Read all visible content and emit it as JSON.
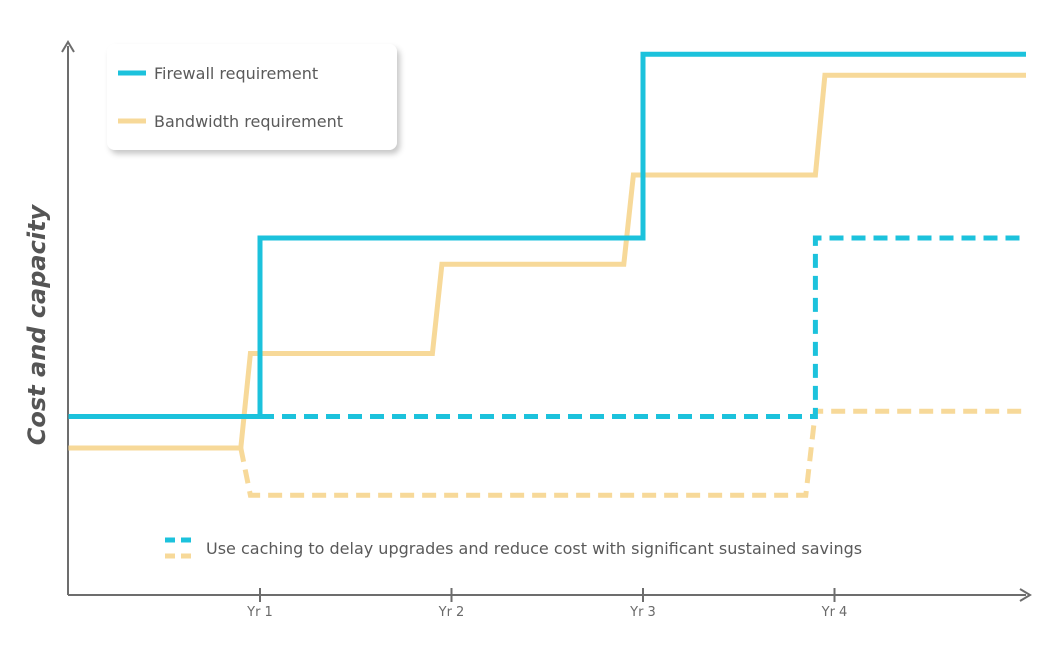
{
  "chart_data": {
    "type": "line",
    "ylabel": "Cost and capacity",
    "xlabel": "",
    "x_ticks": [
      {
        "x": 1,
        "label": "Yr 1"
      },
      {
        "x": 2,
        "label": "Yr 2"
      },
      {
        "x": 3,
        "label": "Yr 3"
      },
      {
        "x": 4,
        "label": "Yr 4"
      }
    ],
    "xlim": [
      0,
      5
    ],
    "ylim": [
      0,
      100
    ],
    "grid": false,
    "legend_placement": "top-left",
    "series": [
      {
        "name": "Firewall requirement",
        "color": "#1cc2dc",
        "style": "solid",
        "points": [
          [
            0,
            34
          ],
          [
            1,
            34
          ],
          [
            1,
            68
          ],
          [
            2,
            68
          ],
          [
            3,
            68
          ],
          [
            3,
            103
          ],
          [
            5,
            103
          ]
        ]
      },
      {
        "name": "Bandwidth requirement",
        "color": "#f7d999",
        "style": "solid",
        "points": [
          [
            0,
            28
          ],
          [
            0.9,
            28
          ],
          [
            0.95,
            46
          ],
          [
            1.9,
            46
          ],
          [
            1.95,
            63
          ],
          [
            2.9,
            63
          ],
          [
            2.95,
            80
          ],
          [
            3.9,
            80
          ],
          [
            3.95,
            99
          ],
          [
            5,
            99
          ]
        ]
      },
      {
        "name": "",
        "color": "#1cc2dc",
        "style": "dashed",
        "points": [
          [
            1,
            34
          ],
          [
            3.9,
            34
          ],
          [
            3.9,
            68
          ],
          [
            5,
            68
          ]
        ]
      },
      {
        "name": "",
        "color": "#f7d999",
        "style": "dashed",
        "points": [
          [
            0.9,
            28
          ],
          [
            0.95,
            19
          ],
          [
            3.85,
            19
          ],
          [
            3.9,
            35
          ],
          [
            5,
            35
          ]
        ]
      }
    ],
    "annotation": "Use caching to delay upgrades and reduce cost with significant sustained savings"
  }
}
